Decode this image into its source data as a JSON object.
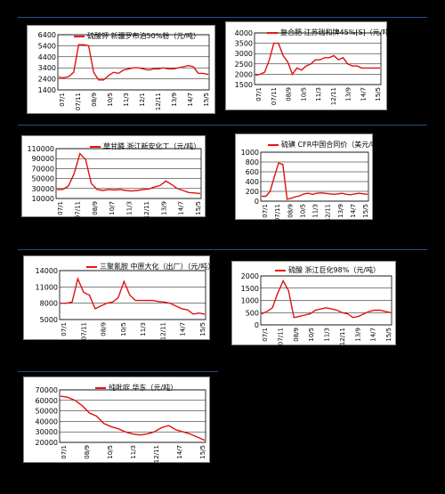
{
  "colors": {
    "background": "#000000",
    "series": "#e01010",
    "separator": "#2b4a8c"
  },
  "chart_data": [
    {
      "type": "line",
      "legend": "硫酸钾 新疆罗布泊50%粉（元/吨）",
      "yticks": [
        1400,
        2400,
        3400,
        4400,
        5400,
        6400
      ],
      "ylim": [
        1400,
        6400
      ],
      "xticks": [
        "07/1",
        "07/11",
        "08/9",
        "10/5",
        "11/3",
        "12/1",
        "12/11",
        "13/9",
        "14/7",
        "15/5"
      ],
      "series": [
        {
          "values": [
            2550,
            2500,
            2600,
            3000,
            5500,
            5500,
            5400,
            3000,
            2300,
            2300,
            2700,
            3000,
            2900,
            3200,
            3300,
            3400,
            3400,
            3300,
            3200,
            3300,
            3300,
            3400,
            3300,
            3300,
            3400,
            3500,
            3600,
            3500,
            2900,
            2900,
            2800
          ]
        }
      ]
    },
    {
      "type": "line",
      "legend": "复合肥 江苏瑞和牌45%[S]（元/吨）",
      "yticks": [
        1500,
        2000,
        2500,
        3000,
        3500,
        4000
      ],
      "ylim": [
        1500,
        4000
      ],
      "xticks": [
        "07/1",
        "07/11",
        "08/9",
        "10/5",
        "11/3",
        "12/11",
        "13/9",
        "14/7",
        "15/5"
      ],
      "series": [
        {
          "values": [
            1950,
            2000,
            2100,
            2700,
            3500,
            3500,
            2900,
            2600,
            2000,
            2300,
            2200,
            2400,
            2500,
            2700,
            2700,
            2800,
            2800,
            2900,
            2700,
            2800,
            2500,
            2400,
            2400,
            2300,
            2300,
            2300,
            2300,
            2300
          ]
        }
      ]
    },
    {
      "type": "line",
      "legend": "草甘膦 浙江新安化工（元/吨）",
      "yticks": [
        10000,
        30000,
        50000,
        70000,
        90000,
        110000
      ],
      "ylim": [
        10000,
        110000
      ],
      "xticks": [
        "07/1",
        "07/11",
        "08/9",
        "10/7",
        "11/3",
        "12/11",
        "13/9",
        "14/7",
        "15/5"
      ],
      "series": [
        {
          "values": [
            28000,
            28000,
            35000,
            60000,
            100000,
            88000,
            40000,
            28000,
            26000,
            28000,
            27000,
            28000,
            26000,
            25000,
            26000,
            28000,
            29000,
            33000,
            36000,
            45000,
            38000,
            30000,
            26000,
            22000,
            21000,
            20000
          ]
        }
      ]
    },
    {
      "type": "line",
      "legend": "硫磺 CFR中国合同价（美元/吨）",
      "yticks": [
        0,
        200,
        400,
        600,
        800,
        1000
      ],
      "ylim": [
        0,
        1000
      ],
      "xticks": [
        "07/1",
        "07/11",
        "08/9",
        "10/5",
        "11/3",
        "12/11",
        "13/9",
        "14/7",
        "15/5"
      ],
      "series": [
        {
          "values": [
            100,
            100,
            200,
            500,
            780,
            750,
            40,
            60,
            90,
            110,
            150,
            160,
            140,
            160,
            170,
            160,
            150,
            140,
            150,
            160,
            140,
            130,
            150,
            160,
            150,
            140
          ]
        }
      ]
    },
    {
      "type": "line",
      "legend": "三聚氰胺 中原大化（出厂）（元/吨）",
      "yticks": [
        5000,
        8000,
        11000,
        14000
      ],
      "ylim": [
        5000,
        14000
      ],
      "xticks": [
        "07/1",
        "07/11",
        "08/9",
        "10/5",
        "11/3",
        "12/11",
        "14/7",
        "15/5"
      ],
      "series": [
        {
          "values": [
            8000,
            8000,
            8200,
            12500,
            10000,
            9500,
            7000,
            7500,
            8000,
            8200,
            9000,
            12000,
            9500,
            8500,
            8500,
            8500,
            8500,
            8300,
            8200,
            8000,
            7500,
            7000,
            6800,
            6000,
            6200,
            6000
          ]
        }
      ]
    },
    {
      "type": "line",
      "legend": "硫酸 浙江巨化98%（元/吨）",
      "yticks": [
        0,
        500,
        1000,
        1500,
        2000
      ],
      "ylim": [
        0,
        2000
      ],
      "xticks": [
        "07/1",
        "07/11",
        "08/9",
        "10/5",
        "11/3",
        "12/11",
        "13/9",
        "14/7",
        "15/5"
      ],
      "series": [
        {
          "values": [
            450,
            550,
            700,
            1300,
            1800,
            1400,
            300,
            350,
            400,
            450,
            600,
            650,
            700,
            650,
            600,
            500,
            450,
            300,
            350,
            450,
            550,
            600,
            600,
            550,
            500
          ]
        }
      ]
    },
    {
      "type": "line",
      "legend": "纯吡啶 华东（元/吨）",
      "yticks": [
        20000,
        30000,
        40000,
        50000,
        60000,
        70000
      ],
      "ylim": [
        20000,
        70000
      ],
      "xticks": [
        "07/1",
        "08/9",
        "10/5",
        "11/3",
        "12/11",
        "14/7",
        "15/5"
      ],
      "series": [
        {
          "values": [
            64000,
            63000,
            60000,
            55000,
            48000,
            45000,
            38000,
            35000,
            33000,
            30000,
            28000,
            27000,
            28000,
            30000,
            34000,
            36000,
            32000,
            30000,
            28000,
            25000,
            22000
          ]
        }
      ]
    }
  ]
}
